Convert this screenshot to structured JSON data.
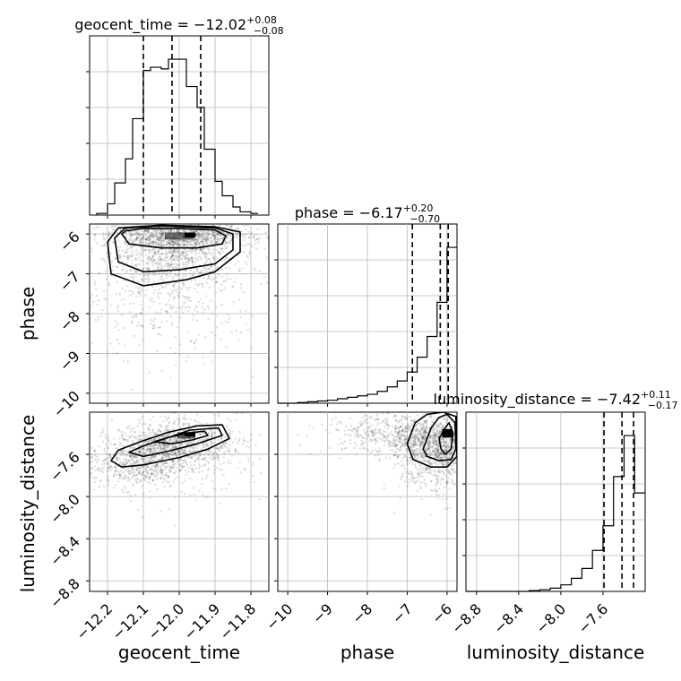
{
  "chart_data": {
    "type": "corner",
    "parameters": [
      "geocent_time",
      "phase",
      "luminosity_distance"
    ],
    "titles": [
      {
        "parameter": "geocent_time",
        "prefix": "geocent_time = ",
        "median": "−12.02",
        "plus": "+0.08",
        "minus": "−0.08"
      },
      {
        "parameter": "phase",
        "prefix": "phase = ",
        "median": "−6.17",
        "plus": "+0.20",
        "minus": "−0.70"
      },
      {
        "parameter": "luminosity_distance",
        "prefix": "luminosity_distance = ",
        "median": "−7.42",
        "plus": "+0.11",
        "minus": "−0.17"
      }
    ],
    "axes": {
      "geocent_time": {
        "range": [
          -12.25,
          -11.75
        ],
        "ticks": [
          -12.2,
          -12.1,
          -12.0,
          -11.9,
          -11.8
        ],
        "tick_labels": [
          "−12.2",
          "−12.1",
          "−12.0",
          "−11.9",
          "−11.8"
        ]
      },
      "phase": {
        "range": [
          -10.25,
          -5.75
        ],
        "ticks": [
          -10,
          -9,
          -8,
          -7,
          -6
        ],
        "tick_labels": [
          "−10",
          "−9",
          "−8",
          "−7",
          "−6"
        ]
      },
      "luminosity_distance": {
        "range": [
          -8.9,
          -7.2
        ],
        "ticks": [
          -8.8,
          -8.4,
          -8.0,
          -7.6
        ],
        "tick_labels": [
          "−8.8",
          "−8.4",
          "−8.0",
          "−7.6"
        ]
      }
    },
    "histograms": [
      {
        "parameter": "geocent_time",
        "bin_edges": [
          -12.23,
          -12.2,
          -12.18,
          -12.15,
          -12.13,
          -12.1,
          -12.08,
          -12.05,
          -12.03,
          -12.0,
          -11.98,
          -11.95,
          -11.93,
          -11.9,
          -11.88,
          -11.85,
          -11.83,
          -11.8,
          -11.78
        ],
        "counts": [
          1,
          7,
          20,
          35,
          60,
          90,
          92,
          91,
          97,
          97,
          80,
          67,
          41,
          21,
          12,
          5,
          2,
          1
        ],
        "quantiles": [
          -12.1,
          -12.02,
          -11.94
        ]
      },
      {
        "parameter": "phase",
        "bin_edges": [
          -10.25,
          -10.0,
          -9.75,
          -9.5,
          -9.25,
          -9.0,
          -8.75,
          -8.5,
          -8.25,
          -8.0,
          -7.75,
          -7.5,
          -7.25,
          -7.0,
          -6.75,
          -6.5,
          -6.25,
          -6.0,
          -5.75
        ],
        "counts": [
          0,
          0,
          0.5,
          1,
          1.5,
          2,
          3,
          4,
          5,
          6,
          8,
          11,
          15,
          21,
          31,
          45,
          68,
          105
        ],
        "quantiles": [
          -6.87,
          -6.17,
          -5.97
        ]
      },
      {
        "parameter": "luminosity_distance",
        "bin_edges": [
          -8.9,
          -8.3,
          -8.2,
          -8.1,
          -8.0,
          -7.9,
          -7.8,
          -7.7,
          -7.6,
          -7.5,
          -7.4,
          -7.3,
          -7.2
        ],
        "counts": [
          0,
          0.5,
          1,
          2,
          4,
          8,
          14,
          25,
          40,
          70,
          95,
          60
        ],
        "quantiles": [
          -7.59,
          -7.42,
          -7.31
        ]
      }
    ],
    "scatter_panels": [
      {
        "x": "geocent_time",
        "y": "phase",
        "cloud": [
          {
            "x": -12.02,
            "y": -6.4,
            "sx": 0.09,
            "sy": 0.45,
            "n": 900
          },
          {
            "x": -12.03,
            "y": -7.4,
            "sx": 0.13,
            "sy": 0.9,
            "n": 500
          },
          {
            "x": -12.0,
            "y": -6.05,
            "sx": 0.1,
            "sy": 0.15,
            "n": 700
          }
        ],
        "contours": [
          [
            [
              -12.16,
              -6.0
            ],
            [
              -12.14,
              -6.25
            ],
            [
              -12.05,
              -6.35
            ],
            [
              -11.95,
              -6.35
            ],
            [
              -11.88,
              -6.25
            ],
            [
              -11.87,
              -6.05
            ],
            [
              -11.9,
              -5.9
            ],
            [
              -12.0,
              -5.86
            ],
            [
              -12.1,
              -5.86
            ],
            [
              -12.15,
              -5.92
            ]
          ],
          [
            [
              -12.18,
              -6.1
            ],
            [
              -12.17,
              -6.7
            ],
            [
              -12.1,
              -6.95
            ],
            [
              -12.0,
              -6.9
            ],
            [
              -11.9,
              -6.75
            ],
            [
              -11.85,
              -6.4
            ],
            [
              -11.85,
              -6.0
            ],
            [
              -11.9,
              -5.85
            ],
            [
              -12.05,
              -5.8
            ],
            [
              -12.15,
              -5.85
            ]
          ],
          [
            [
              -12.2,
              -6.2
            ],
            [
              -12.19,
              -7.0
            ],
            [
              -12.1,
              -7.3
            ],
            [
              -11.98,
              -7.15
            ],
            [
              -11.9,
              -6.95
            ],
            [
              -11.83,
              -6.45
            ],
            [
              -11.83,
              -5.95
            ],
            [
              -11.9,
              -5.82
            ],
            [
              -12.05,
              -5.78
            ],
            [
              -12.17,
              -5.85
            ]
          ]
        ],
        "dense": [
          {
            "x": -12.0,
            "y": -6.05,
            "w": 0.08,
            "h": 0.18,
            "a": 0.5
          },
          {
            "x": -11.97,
            "y": -6.03,
            "w": 0.03,
            "h": 0.12,
            "a": 1
          }
        ]
      },
      {
        "x": "geocent_time",
        "y": "luminosity_distance",
        "cloud": [
          {
            "x": -12.02,
            "y": -7.5,
            "sx": 0.08,
            "sy": 0.1,
            "n": 900
          },
          {
            "x": -12.12,
            "y": -7.72,
            "sx": 0.07,
            "sy": 0.1,
            "n": 500
          },
          {
            "x": -11.95,
            "y": -7.6,
            "sx": 0.1,
            "sy": 0.25,
            "n": 200
          }
        ],
        "contours": [
          [
            [
              -12.07,
              -7.48
            ],
            [
              -12.03,
              -7.44
            ],
            [
              -11.98,
              -7.4
            ],
            [
              -11.93,
              -7.38
            ],
            [
              -11.92,
              -7.42
            ],
            [
              -11.96,
              -7.46
            ],
            [
              -12.02,
              -7.5
            ]
          ],
          [
            [
              -12.14,
              -7.58
            ],
            [
              -12.1,
              -7.52
            ],
            [
              -12.03,
              -7.44
            ],
            [
              -11.97,
              -7.37
            ],
            [
              -11.89,
              -7.35
            ],
            [
              -11.88,
              -7.42
            ],
            [
              -11.95,
              -7.5
            ],
            [
              -12.03,
              -7.57
            ],
            [
              -12.1,
              -7.62
            ]
          ],
          [
            [
              -12.19,
              -7.66
            ],
            [
              -12.17,
              -7.56
            ],
            [
              -12.1,
              -7.47
            ],
            [
              -12.03,
              -7.39
            ],
            [
              -11.95,
              -7.33
            ],
            [
              -11.88,
              -7.32
            ],
            [
              -11.86,
              -7.45
            ],
            [
              -11.92,
              -7.55
            ],
            [
              -12.0,
              -7.63
            ],
            [
              -12.1,
              -7.7
            ],
            [
              -12.16,
              -7.72
            ]
          ]
        ],
        "dense": [
          {
            "x": -11.98,
            "y": -7.42,
            "w": 0.05,
            "h": 0.06,
            "a": 0.6
          },
          {
            "x": -11.97,
            "y": -7.41,
            "w": 0.03,
            "h": 0.04,
            "a": 1
          }
        ]
      },
      {
        "x": "phase",
        "y": "luminosity_distance",
        "cloud": [
          {
            "x": -6.3,
            "y": -7.5,
            "sx": 0.5,
            "sy": 0.12,
            "n": 900
          },
          {
            "x": -7.5,
            "y": -7.4,
            "sx": 0.8,
            "sy": 0.1,
            "n": 400
          },
          {
            "x": -6.2,
            "y": -7.75,
            "sx": 0.5,
            "sy": 0.15,
            "n": 300
          }
        ],
        "contours": [
          [
            [
              -6.2,
              -7.45
            ],
            [
              -6.05,
              -7.35
            ],
            [
              -5.95,
              -7.3
            ],
            [
              -5.85,
              -7.4
            ],
            [
              -5.9,
              -7.55
            ],
            [
              -6.05,
              -7.6
            ],
            [
              -6.15,
              -7.55
            ]
          ],
          [
            [
              -6.6,
              -7.55
            ],
            [
              -6.4,
              -7.35
            ],
            [
              -6.2,
              -7.25
            ],
            [
              -6.0,
              -7.22
            ],
            [
              -5.8,
              -7.3
            ],
            [
              -5.78,
              -7.55
            ],
            [
              -5.9,
              -7.65
            ],
            [
              -6.2,
              -7.66
            ],
            [
              -6.5,
              -7.62
            ]
          ],
          [
            [
              -7.0,
              -7.5
            ],
            [
              -6.8,
              -7.3
            ],
            [
              -6.5,
              -7.22
            ],
            [
              -6.1,
              -7.2
            ],
            [
              -5.78,
              -7.24
            ],
            [
              -5.75,
              -7.62
            ],
            [
              -6.0,
              -7.72
            ],
            [
              -6.4,
              -7.72
            ],
            [
              -6.85,
              -7.65
            ]
          ]
        ],
        "dense": [
          {
            "x": -6.0,
            "y": -7.4,
            "w": 0.25,
            "h": 0.08,
            "a": 1
          }
        ]
      }
    ],
    "grid": true,
    "legend": "none"
  }
}
